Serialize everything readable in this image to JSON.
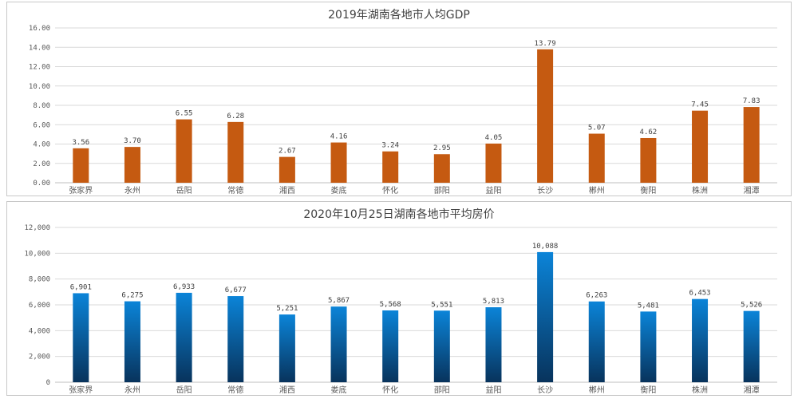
{
  "chart_data": [
    {
      "type": "bar",
      "title": "2019年湖南各地市人均GDP",
      "categories": [
        "张家界",
        "永州",
        "岳阳",
        "常德",
        "湘西",
        "娄底",
        "怀化",
        "邵阳",
        "益阳",
        "长沙",
        "郴州",
        "衡阳",
        "株洲",
        "湘潭"
      ],
      "values": [
        3.56,
        3.7,
        6.55,
        6.28,
        2.67,
        4.16,
        3.24,
        2.95,
        4.05,
        13.79,
        5.07,
        4.62,
        7.45,
        7.83
      ],
      "value_labels": [
        "3.56",
        "3.70",
        "6.55",
        "6.28",
        "2.67",
        "4.16",
        "3.24",
        "2.95",
        "4.05",
        "13.79",
        "5.07",
        "4.62",
        "7.45",
        "7.83"
      ],
      "yticks": [
        0,
        2,
        4,
        6,
        8,
        10,
        12,
        14,
        16
      ],
      "ytick_labels": [
        "0.00",
        "2.00",
        "4.00",
        "6.00",
        "8.00",
        "10.00",
        "12.00",
        "14.00",
        "16.00"
      ],
      "ylim": [
        0,
        16
      ],
      "xlabel": "",
      "ylabel": "",
      "grid": true,
      "color": "#c55a11"
    },
    {
      "type": "bar",
      "title": "2020年10月25日湖南各地市平均房价",
      "categories": [
        "张家界",
        "永州",
        "岳阳",
        "常德",
        "湘西",
        "娄底",
        "怀化",
        "邵阳",
        "益阳",
        "长沙",
        "郴州",
        "衡阳",
        "株洲",
        "湘潭"
      ],
      "values": [
        6901,
        6275,
        6933,
        6677,
        5251,
        5867,
        5568,
        5551,
        5813,
        10088,
        6263,
        5481,
        6453,
        5526
      ],
      "value_labels": [
        "6,901",
        "6,275",
        "6,933",
        "6,677",
        "5,251",
        "5,867",
        "5,568",
        "5,551",
        "5,813",
        "10,088",
        "6,263",
        "5,481",
        "6,453",
        "5,526"
      ],
      "yticks": [
        0,
        2000,
        4000,
        6000,
        8000,
        10000,
        12000
      ],
      "ytick_labels": [
        "0",
        "2,000",
        "4,000",
        "6,000",
        "8,000",
        "10,000",
        "12,000"
      ],
      "ylim": [
        0,
        12000
      ],
      "xlabel": "",
      "ylabel": "",
      "grid": true,
      "color_top": "#0b84d8",
      "color_bottom": "#08335c"
    }
  ]
}
